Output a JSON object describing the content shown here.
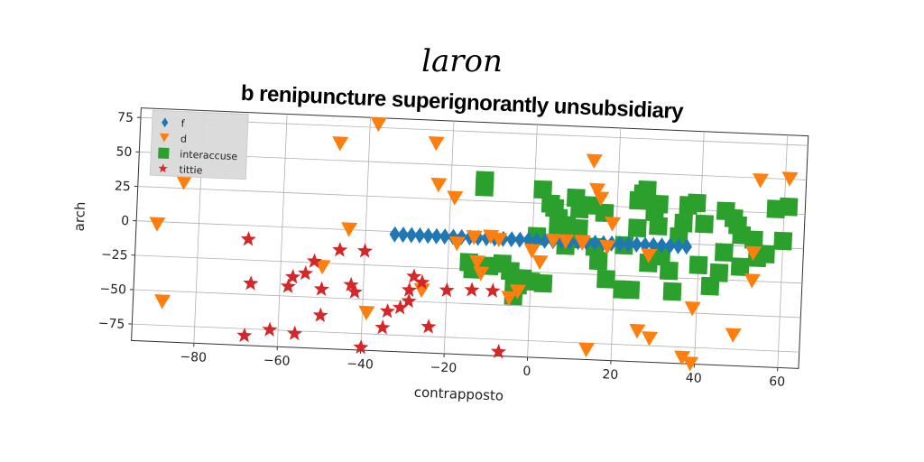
{
  "header": {
    "text": "laron"
  },
  "chart_data": {
    "type": "scatter",
    "title": "b renipuncture superignorantly unsubsidiary",
    "xlabel": "contrapposto",
    "ylabel": "arch",
    "xlim": [
      -95,
      65
    ],
    "ylim": [
      -87,
      82
    ],
    "xticks": [
      -80,
      -60,
      -40,
      -20,
      0,
      20,
      40,
      60
    ],
    "yticks": [
      -75,
      -50,
      -25,
      0,
      25,
      50,
      75
    ],
    "grid": true,
    "legend_position": "top-left",
    "series": [
      {
        "name": "f",
        "marker": "diamond",
        "color": "#1f77b4",
        "points": [
          [
            -33,
            -2
          ],
          [
            -31,
            -2
          ],
          [
            -29,
            -2
          ],
          [
            -27,
            -2
          ],
          [
            -25,
            -2
          ],
          [
            -23,
            -2
          ],
          [
            -21,
            -2
          ],
          [
            -19,
            -2
          ],
          [
            -17,
            -2
          ],
          [
            -15,
            -2
          ],
          [
            -13,
            -2
          ],
          [
            -11,
            -2
          ],
          [
            -9,
            -2
          ],
          [
            -7,
            -2
          ],
          [
            -5,
            -2
          ],
          [
            -3,
            -2
          ],
          [
            -1,
            -2
          ],
          [
            1,
            -2
          ],
          [
            3,
            -2
          ],
          [
            5,
            -2
          ],
          [
            7,
            -2
          ],
          [
            9,
            -2
          ],
          [
            11,
            -2
          ],
          [
            13,
            -2
          ],
          [
            15,
            -2
          ],
          [
            17,
            -2
          ],
          [
            19,
            -2
          ],
          [
            21,
            -2
          ],
          [
            23,
            -2
          ],
          [
            25,
            -2
          ],
          [
            27,
            -2
          ],
          [
            29,
            -2
          ],
          [
            31,
            -2
          ],
          [
            33,
            -2
          ],
          [
            35,
            -2
          ],
          [
            37,
            -2
          ]
        ]
      },
      {
        "name": "d",
        "marker": "triangle_down",
        "color": "#ff7f0e",
        "points": [
          [
            -90,
            -2
          ],
          [
            -88,
            -58
          ],
          [
            -84,
            29
          ],
          [
            -47,
            62
          ],
          [
            -38,
            77
          ],
          [
            -44,
            0
          ],
          [
            -50,
            -28
          ],
          [
            -39,
            -60
          ],
          [
            -24,
            65
          ],
          [
            -23,
            35
          ],
          [
            -19,
            26
          ],
          [
            -18,
            -7
          ],
          [
            -14,
            -2
          ],
          [
            -13,
            -20
          ],
          [
            -12,
            -28
          ],
          [
            -26,
            -42
          ],
          [
            -8,
            -3
          ],
          [
            -5,
            -45
          ],
          [
            -3,
            -40
          ],
          [
            0,
            -10
          ],
          [
            2,
            -18
          ],
          [
            5,
            -2
          ],
          [
            8,
            -2
          ],
          [
            12,
            -2
          ],
          [
            14,
            57
          ],
          [
            15,
            36
          ],
          [
            16,
            30
          ],
          [
            19,
            12
          ],
          [
            26,
            -65
          ],
          [
            29,
            -70
          ],
          [
            28,
            -10
          ],
          [
            37,
            -83
          ],
          [
            39,
            -87
          ],
          [
            39,
            -47
          ],
          [
            49,
            -65
          ],
          [
            53,
            -5
          ],
          [
            53,
            -25
          ],
          [
            54,
            48
          ],
          [
            61,
            50
          ],
          [
            14,
            -80
          ],
          [
            12,
            -3
          ],
          [
            18,
            -5
          ],
          [
            -10,
            -1
          ]
        ]
      },
      {
        "name": "interaccuse",
        "marker": "square",
        "color": "#2ca02c",
        "points": [
          [
            -12,
            40
          ],
          [
            -12,
            35
          ],
          [
            -15,
            -20
          ],
          [
            -14,
            -25
          ],
          [
            -10,
            -22
          ],
          [
            -7,
            -20
          ],
          [
            -5,
            -25
          ],
          [
            -4,
            -30
          ],
          [
            -3,
            -35
          ],
          [
            -4,
            -43
          ],
          [
            -2,
            -30
          ],
          [
            0,
            -32
          ],
          [
            3,
            -33
          ],
          [
            2,
            35
          ],
          [
            4,
            25
          ],
          [
            5,
            22
          ],
          [
            6,
            15
          ],
          [
            6,
            5
          ],
          [
            8,
            10
          ],
          [
            8,
            -5
          ],
          [
            9,
            0
          ],
          [
            10,
            30
          ],
          [
            11,
            22
          ],
          [
            11,
            8
          ],
          [
            14,
            25
          ],
          [
            15,
            -5
          ],
          [
            16,
            -15
          ],
          [
            17,
            20
          ],
          [
            18,
            -28
          ],
          [
            22,
            -3
          ],
          [
            24,
            -35
          ],
          [
            25,
            30
          ],
          [
            25,
            10
          ],
          [
            26,
            35
          ],
          [
            27,
            38
          ],
          [
            28,
            -15
          ],
          [
            29,
            22
          ],
          [
            30,
            28
          ],
          [
            30,
            12
          ],
          [
            31,
            -10
          ],
          [
            33,
            -20
          ],
          [
            34,
            -35
          ],
          [
            35,
            5
          ],
          [
            36,
            15
          ],
          [
            37,
            28
          ],
          [
            39,
            30
          ],
          [
            40,
            -15
          ],
          [
            41,
            15
          ],
          [
            43,
            -30
          ],
          [
            45,
            -20
          ],
          [
            46,
            -5
          ],
          [
            46,
            25
          ],
          [
            48,
            20
          ],
          [
            49,
            15
          ],
          [
            50,
            -15
          ],
          [
            50,
            8
          ],
          [
            53,
            5
          ],
          [
            54,
            -8
          ],
          [
            56,
            -5
          ],
          [
            58,
            28
          ],
          [
            60,
            5
          ],
          [
            61,
            30
          ],
          [
            22,
            -35
          ],
          [
            1,
            1
          ]
        ]
      },
      {
        "name": "tittie",
        "marker": "star",
        "color": "#d62728",
        "points": [
          [
            -68,
            -10
          ],
          [
            -68,
            -80
          ],
          [
            -67,
            -42
          ],
          [
            -62,
            -75
          ],
          [
            -57,
            -36
          ],
          [
            -58,
            -43
          ],
          [
            -56,
            -77
          ],
          [
            -54,
            -33
          ],
          [
            -52,
            -24
          ],
          [
            -50,
            -44
          ],
          [
            -50,
            -63
          ],
          [
            -46,
            -15
          ],
          [
            -43,
            -40
          ],
          [
            -42,
            -45
          ],
          [
            -40,
            -85
          ],
          [
            -40,
            -15
          ],
          [
            -35,
            -70
          ],
          [
            -34,
            -58
          ],
          [
            -31,
            -55
          ],
          [
            -29,
            -50
          ],
          [
            -28,
            -32
          ],
          [
            -29,
            -42
          ],
          [
            -26,
            -36
          ],
          [
            -24,
            -68
          ],
          [
            -20,
            -41
          ],
          [
            -14,
            -40
          ],
          [
            -9,
            -40
          ],
          [
            -7,
            -84
          ]
        ]
      }
    ]
  }
}
